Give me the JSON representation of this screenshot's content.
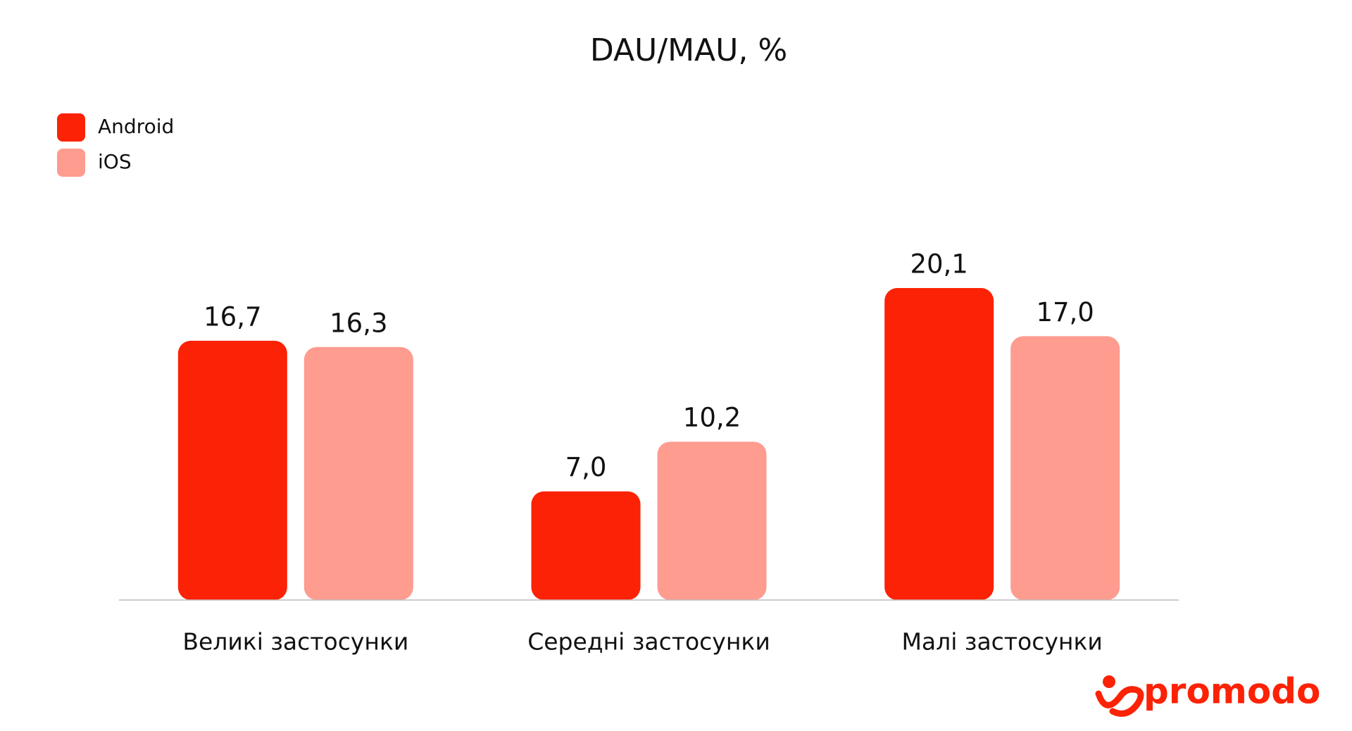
{
  "chart_data": {
    "type": "bar",
    "title": "DAU/MAU, %",
    "categories": [
      "Великі застосунки",
      "Середні застосунки",
      "Малі застосунки"
    ],
    "series": [
      {
        "name": "Android",
        "color": "#fc2206",
        "values": [
          16.7,
          7.0,
          20.1
        ],
        "value_labels": [
          "16,7",
          "7,0",
          "20,1"
        ]
      },
      {
        "name": "iOS",
        "color": "#fd9c8f",
        "values": [
          16.3,
          10.2,
          17.0
        ],
        "value_labels": [
          "16,3",
          "10,2",
          "17,0"
        ]
      }
    ],
    "legend": "top-left",
    "logo": "promodo"
  }
}
